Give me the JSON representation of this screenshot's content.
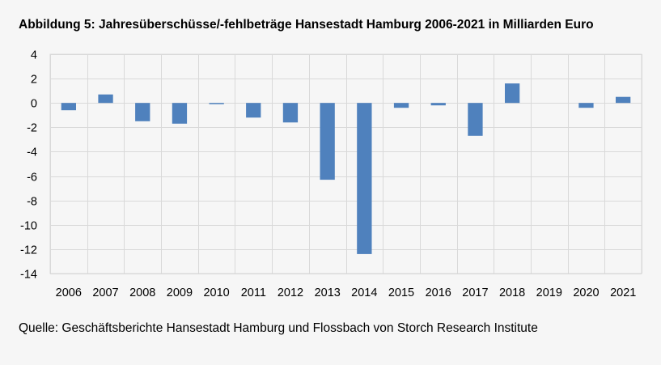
{
  "title": "Abbildung 5: Jahresüberschüsse/-fehlbeträge Hansestadt Hamburg 2006-2021 in Milliarden Euro",
  "source": "Quelle: Geschäftsberichte Hansestadt Hamburg und Flossbach von Storch Research Institute",
  "colors": {
    "bar": "#4f81bd",
    "grid": "#d9d9d9",
    "background": "#f6f6f6"
  },
  "chart_data": {
    "type": "bar",
    "title": "Abbildung 5: Jahresüberschüsse/-fehlbeträge Hansestadt Hamburg 2006-2021 in Milliarden Euro",
    "xlabel": "",
    "ylabel": "",
    "categories": [
      "2006",
      "2007",
      "2008",
      "2009",
      "2010",
      "2011",
      "2012",
      "2013",
      "2014",
      "2015",
      "2016",
      "2017",
      "2018",
      "2019",
      "2020",
      "2021"
    ],
    "values": [
      -0.6,
      0.7,
      -1.5,
      -1.7,
      -0.1,
      -1.2,
      -1.6,
      -6.3,
      -12.4,
      -0.4,
      -0.2,
      -2.7,
      1.6,
      0.0,
      -0.4,
      0.5
    ],
    "ylim": [
      -14,
      4
    ],
    "yticks": [
      4,
      2,
      0,
      -2,
      -4,
      -6,
      -8,
      -10,
      -12,
      -14
    ],
    "yticklabels": [
      "4",
      "2",
      "0",
      "-2",
      "-4",
      "-6",
      "-8",
      "-10",
      "-12",
      "-14"
    ],
    "grid": true,
    "legend": "none"
  }
}
